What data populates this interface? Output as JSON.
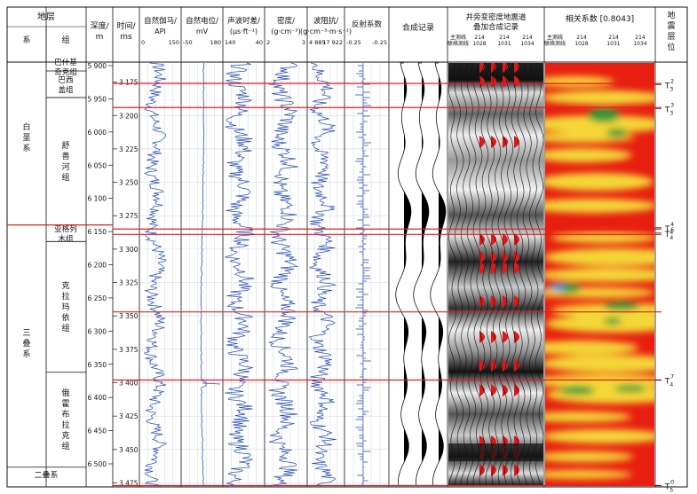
{
  "chart_data": {
    "type": "well-log",
    "header": {
      "formation": "地层",
      "system": "系",
      "group": "组",
      "depth": "深度/",
      "depth_unit": "m",
      "time": "时间/",
      "time_unit": "ms",
      "gr": "自然伽马/",
      "gr_unit": "API",
      "gr_range": [
        "0",
        "150"
      ],
      "sp": "自然电位/",
      "sp_unit": "mV",
      "sp_range": [
        "-50",
        "180"
      ],
      "ac": "声波时差/",
      "ac_unit": "(μs·ft⁻¹)",
      "ac_range": [
        "140",
        "40"
      ],
      "den": "密度/",
      "den_unit": "(g·cm⁻³)",
      "den_range": [
        "2",
        "3"
      ],
      "imp": "波阻抗/",
      "imp_unit": "(g·cm⁻³·m·s⁻¹)",
      "imp_range": [
        "4 885",
        "17 922"
      ],
      "refl": "反射系数",
      "refl_range": [
        "-0.25",
        "-0.25"
      ],
      "synth": "合成记录",
      "seis_title1": "井旁变密度地震道",
      "seis_title2": "叠加合成记录",
      "corr": "相关系数 [0.8043]",
      "lab_main1": "主测线",
      "lab_main2": "联络测线",
      "lab_1028": "1028",
      "lab_1031": "1031",
      "lab_1034": "1034",
      "lab_214": "214",
      "horizon_col": "地震层位"
    },
    "systems": [
      {
        "name": "白垩系",
        "from_depth": 5885,
        "to_depth": 6140
      },
      {
        "name": "三叠系",
        "from_depth": 6140,
        "to_depth": 6505
      },
      {
        "name": "二叠系",
        "from_depth": 6505,
        "to_depth": 6528
      }
    ],
    "groups": [
      {
        "name": "巴什基奇克组",
        "from_depth": 5885,
        "to_depth": 5908
      },
      {
        "name": "巴西盖组",
        "from_depth": 5908,
        "to_depth": 5948
      },
      {
        "name": "舒善河组",
        "from_depth": 5948,
        "to_depth": 6140
      },
      {
        "name": "亚格列木组",
        "from_depth": 6140,
        "to_depth": 6165
      },
      {
        "name": "克拉玛依组",
        "from_depth": 6165,
        "to_depth": 6362
      },
      {
        "name": "俄霍布拉克组",
        "from_depth": 6362,
        "to_depth": 6505
      }
    ],
    "depth_ticks": [
      "5 900",
      "5 950",
      "6 000",
      "6 050",
      "6 100",
      "6 150",
      "6 200",
      "6 250",
      "6 300",
      "6 350",
      "6 400",
      "6 450",
      "6 500"
    ],
    "depth_values": [
      5900,
      5950,
      6000,
      6050,
      6100,
      6150,
      6200,
      6250,
      6300,
      6350,
      6400,
      6450,
      6500
    ],
    "time_ticks": [
      "3 175",
      "3 200",
      "3 225",
      "3 250",
      "3 275",
      "3 300",
      "3 325",
      "3 350",
      "3 375",
      "3 400",
      "3 425",
      "3 450",
      "3 475"
    ],
    "time_values": [
      3175,
      3200,
      3225,
      3250,
      3275,
      3300,
      3325,
      3350,
      3375,
      3400,
      3425,
      3450,
      3475
    ],
    "time_range": [
      3160,
      3478
    ],
    "horizons": [
      {
        "label": "T",
        "sub": "3",
        "sup": "2",
        "time": 3177
      },
      {
        "label": "T",
        "sub": "3",
        "sup": "3",
        "time": 3195
      },
      {
        "label": "T",
        "sub": "4",
        "sup": "4",
        "time": 3284
      },
      {
        "label": "T",
        "sub": "4",
        "sup": "6",
        "time": 3288
      },
      {
        "label": "T",
        "sub": "4",
        "sup": "7",
        "time": 3398
      },
      {
        "label": "T",
        "sub": "5",
        "sup": "0",
        "time": 3477
      }
    ],
    "red_lines_time": [
      3176,
      3194,
      3285,
      3289,
      3347,
      3398,
      3477
    ]
  },
  "colors": {
    "curve": "#2850b8",
    "horizon": "#e02020",
    "wiggle_fill": "#000000",
    "seis_red": "#e01818",
    "corr_red": "#e81e10",
    "corr_yellow": "#f4e03a",
    "corr_green": "#2e9a3a"
  }
}
